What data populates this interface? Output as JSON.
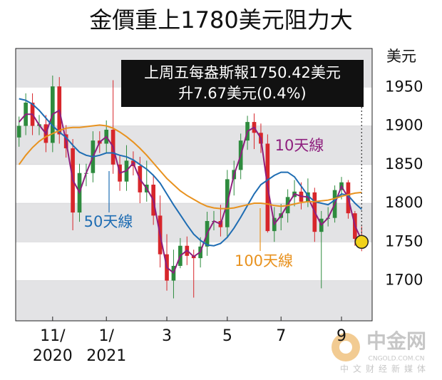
{
  "chart_data": {
    "type": "candlestick",
    "title": "金價重上1780美元阻力大",
    "y_unit": "美元",
    "callout": [
      "上周五每盎斯報1750.42美元",
      "升7.67美元(0.4%)"
    ],
    "watermark": {
      "name": "中金网",
      "site": "CNGOLD.COM.CN",
      "slogan": "中文财经新媒体"
    },
    "categories": [
      null,
      null,
      null,
      null,
      null,
      "11/\n2020",
      null,
      null,
      null,
      null,
      null,
      null,
      null,
      "1/\n2021",
      null,
      null,
      null,
      null,
      null,
      null,
      null,
      null,
      "3",
      null,
      null,
      null,
      null,
      null,
      null,
      null,
      null,
      "5",
      null,
      null,
      null,
      null,
      null,
      null,
      null,
      "7",
      null,
      null,
      null,
      null,
      null,
      null,
      null,
      null,
      "9",
      null,
      null,
      null
    ],
    "candles": {
      "up_color": "#2e8b3e",
      "down_color": "#d7262b",
      "open": [
        1885,
        1900,
        1930,
        1900,
        1902,
        1878,
        1951,
        1889,
        1871,
        1788,
        1839,
        1839,
        1881,
        1877,
        1895,
        1850,
        1828,
        1855,
        1848,
        1814,
        1824,
        1784,
        1734,
        1700,
        1719,
        1745,
        1732,
        1729,
        1744,
        1777,
        1777,
        1769,
        1831,
        1843,
        1881,
        1905,
        1891,
        1877,
        1764,
        1781,
        1787,
        1808,
        1815,
        1802,
        1814,
        1763,
        1780,
        1781,
        1817,
        1827,
        1787,
        1754
      ],
      "high": [
        1912,
        1942,
        1942,
        1914,
        1914,
        1965,
        1963,
        1901,
        1883,
        1851,
        1851,
        1893,
        1893,
        1907,
        1959,
        1862,
        1875,
        1867,
        1860,
        1855,
        1836,
        1810,
        1760,
        1740,
        1755,
        1757,
        1740,
        1756,
        1789,
        1790,
        1798,
        1843,
        1855,
        1890,
        1913,
        1916,
        1903,
        1889,
        1795,
        1799,
        1818,
        1830,
        1827,
        1832,
        1820,
        1790,
        1795,
        1823,
        1834,
        1830,
        1790,
        1770
      ],
      "low": [
        1873,
        1888,
        1888,
        1888,
        1866,
        1866,
        1877,
        1859,
        1765,
        1776,
        1822,
        1827,
        1865,
        1865,
        1838,
        1816,
        1816,
        1836,
        1800,
        1802,
        1772,
        1717,
        1687,
        1677,
        1716,
        1720,
        1678,
        1717,
        1732,
        1765,
        1757,
        1757,
        1810,
        1831,
        1869,
        1870,
        1865,
        1762,
        1750,
        1765,
        1775,
        1796,
        1792,
        1795,
        1750,
        1690,
        1770,
        1775,
        1805,
        1780,
        1745,
        1738
      ],
      "close": [
        1900,
        1930,
        1900,
        1902,
        1878,
        1951,
        1889,
        1871,
        1788,
        1839,
        1839,
        1881,
        1877,
        1895,
        1850,
        1828,
        1855,
        1848,
        1814,
        1824,
        1784,
        1734,
        1700,
        1719,
        1745,
        1732,
        1729,
        1744,
        1777,
        1777,
        1769,
        1831,
        1843,
        1881,
        1905,
        1891,
        1877,
        1764,
        1781,
        1787,
        1808,
        1815,
        1802,
        1814,
        1763,
        1780,
        1781,
        1817,
        1827,
        1787,
        1754,
        1750
      ]
    },
    "series": [
      {
        "name": "10天線",
        "color": "#8e1f7e",
        "values": [
          1905,
          1915,
          1915,
          1901,
          1890,
          1915,
          1920,
          1880,
          1830,
          1814,
          1839,
          1860,
          1879,
          1886,
          1873,
          1839,
          1842,
          1852,
          1831,
          1819,
          1804,
          1759,
          1717,
          1710,
          1732,
          1739,
          1731,
          1737,
          1761,
          1777,
          1773,
          1800,
          1837,
          1862,
          1893,
          1898,
          1884,
          1821,
          1773,
          1784,
          1798,
          1812,
          1809,
          1808,
          1789,
          1772,
          1781,
          1799,
          1822,
          1807,
          1771,
          1752
        ]
      },
      {
        "name": "50天線",
        "color": "#1f6db3",
        "values": [
          1935,
          1933,
          1928,
          1920,
          1910,
          1900,
          1892,
          1885,
          1875,
          1866,
          1862,
          1860,
          1862,
          1865,
          1865,
          1862,
          1860,
          1856,
          1850,
          1844,
          1836,
          1826,
          1812,
          1798,
          1785,
          1772,
          1760,
          1752,
          1746,
          1745,
          1748,
          1756,
          1768,
          1782,
          1797,
          1812,
          1824,
          1830,
          1836,
          1840,
          1840,
          1834,
          1822,
          1810,
          1802,
          1800,
          1798,
          1804,
          1812,
          1810,
          1800,
          1792
        ]
      },
      {
        "name": "100天線",
        "color": "#e8921f",
        "values": [
          1850,
          1862,
          1872,
          1880,
          1886,
          1890,
          1894,
          1897,
          1898,
          1898,
          1899,
          1900,
          1901,
          1900,
          1897,
          1892,
          1886,
          1879,
          1871,
          1862,
          1852,
          1842,
          1832,
          1824,
          1816,
          1810,
          1805,
          1800,
          1796,
          1794,
          1793,
          1793,
          1794,
          1796,
          1798,
          1800,
          1800,
          1799,
          1797,
          1796,
          1797,
          1799,
          1801,
          1802,
          1802,
          1803,
          1804,
          1806,
          1809,
          1811,
          1813,
          1814
        ]
      }
    ],
    "last_marker_color": "#f2d21b",
    "ylim": [
      1648,
      2000
    ],
    "yticks": [
      1700,
      1750,
      1800,
      1850,
      1900,
      1950
    ],
    "band_color": "#e3e3e5"
  }
}
